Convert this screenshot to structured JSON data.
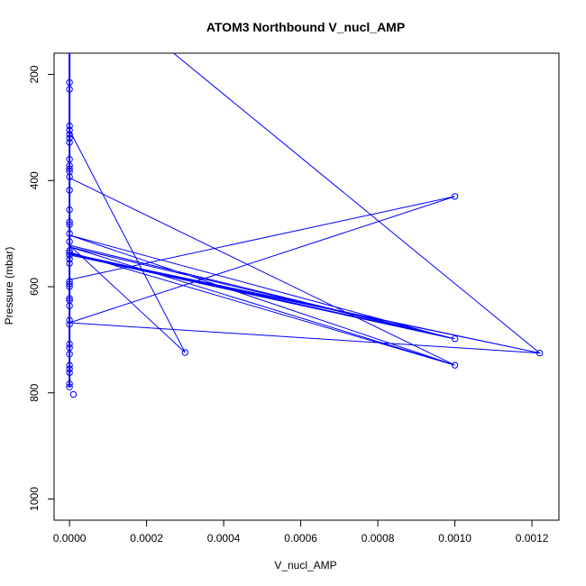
{
  "chart_data": {
    "type": "line",
    "title": "ATOM3 Northbound V_nucl_AMP",
    "xlabel": "V_nucl_AMP",
    "ylabel": "Pressure (mbar)",
    "xlim": [
      -4e-05,
      0.00127
    ],
    "ylim": [
      1040,
      160
    ],
    "y_reversed": true,
    "grid": false,
    "legend": "none",
    "line_color": "#0000ff",
    "x_ticks": [
      0,
      0.0002,
      0.0004,
      0.0006,
      0.0008,
      0.001,
      0.0012
    ],
    "x_tick_labels": [
      "0.0000",
      "0.0002",
      "0.0004",
      "0.0006",
      "0.0008",
      "0.0010",
      "0.0012"
    ],
    "y_ticks": [
      200,
      400,
      600,
      800,
      1000
    ],
    "y_tick_labels": [
      "200",
      "400",
      "600",
      "800",
      "1000"
    ],
    "series": [
      {
        "points": [
          [
            0.00027,
            160
          ],
          [
            0.00122,
            725
          ],
          [
            0.0,
            668
          ],
          [
            0.001,
            430
          ],
          [
            0.0,
            587
          ],
          [
            0.0,
            535
          ],
          [
            0.001,
            748
          ],
          [
            0.0,
            503
          ],
          [
            0.00099,
            697
          ],
          [
            0.0,
            540
          ],
          [
            0.00122,
            725
          ],
          [
            0.0,
            538
          ],
          [
            0.00099,
            697
          ],
          [
            0.0,
            525
          ],
          [
            0.001,
            748
          ],
          [
            0.0,
            395
          ],
          [
            0.0,
            537
          ],
          [
            0.001,
            698
          ],
          [
            0.0,
            522
          ],
          [
            0.0003,
            724
          ],
          [
            0.0,
            305
          ]
        ]
      }
    ],
    "markers": [
      [
        0.0,
        215
      ],
      [
        0.0,
        228
      ],
      [
        0.0,
        297
      ],
      [
        0.0,
        305
      ],
      [
        0.0,
        313
      ],
      [
        0.0,
        320
      ],
      [
        0.0,
        328
      ],
      [
        0.0,
        360
      ],
      [
        0.0,
        372
      ],
      [
        0.0,
        378
      ],
      [
        0.0,
        383
      ],
      [
        0.0,
        393
      ],
      [
        0.0,
        418
      ],
      [
        0.0,
        455
      ],
      [
        0.0,
        478
      ],
      [
        0.0,
        483
      ],
      [
        0.0,
        500
      ],
      [
        0.0,
        515
      ],
      [
        0.0,
        532
      ],
      [
        0.0,
        536
      ],
      [
        0.0,
        541
      ],
      [
        0.0,
        548
      ],
      [
        0.0,
        556
      ],
      [
        0.0,
        590
      ],
      [
        0.0,
        595
      ],
      [
        0.0,
        600
      ],
      [
        0.0,
        622
      ],
      [
        0.0,
        626
      ],
      [
        0.0,
        636
      ],
      [
        0.0,
        663
      ],
      [
        0.0,
        671
      ],
      [
        0.0,
        708
      ],
      [
        0.0,
        715
      ],
      [
        0.0,
        727
      ],
      [
        0.0,
        748
      ],
      [
        0.0,
        755
      ],
      [
        0.0,
        762
      ],
      [
        0.0,
        783
      ],
      [
        0.0,
        789
      ],
      [
        1e-05,
        803
      ],
      [
        0.0003,
        724
      ],
      [
        0.001,
        430
      ],
      [
        0.001,
        698
      ],
      [
        0.001,
        748
      ],
      [
        0.00122,
        725
      ]
    ]
  }
}
